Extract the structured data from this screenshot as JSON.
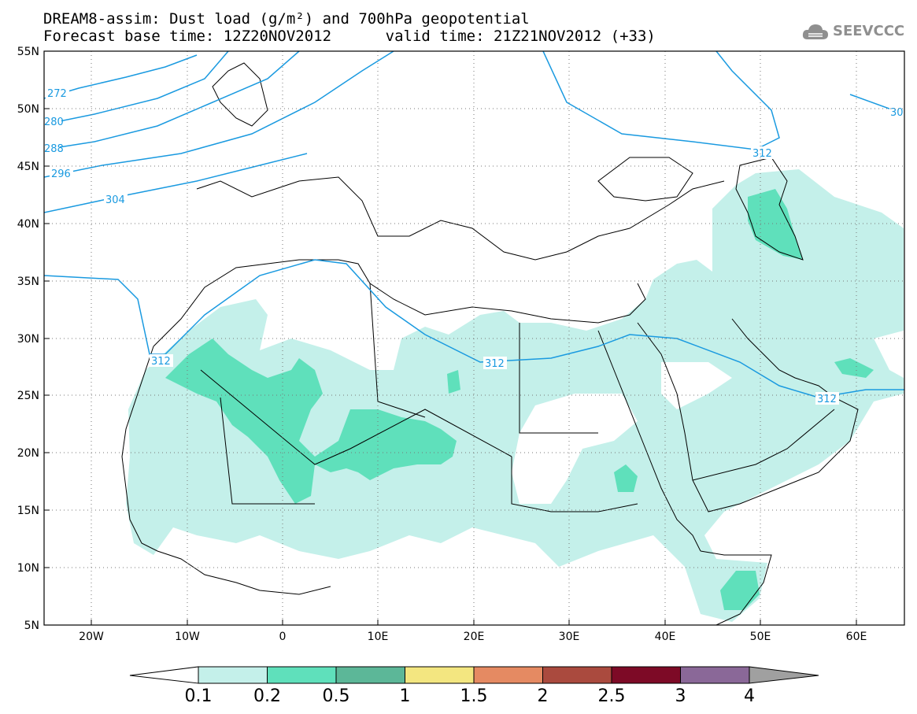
{
  "title": {
    "line1": "DREAM8-assim: Dust load (g/m²) and 700hPa geopotential",
    "line2": "Forecast base time: 12Z20NOV2012      valid time: 21Z21NOV2012 (+33)"
  },
  "logo": {
    "text": "SEEVCCC",
    "icon": "cloud-icon"
  },
  "map": {
    "lon_range": [
      -25,
      65
    ],
    "lat_range": [
      5,
      55
    ],
    "x_ticks": [
      "20W",
      "10W",
      "0",
      "10E",
      "20E",
      "30E",
      "40E",
      "50E",
      "60E"
    ],
    "y_ticks": [
      "55N",
      "50N",
      "45N",
      "40N",
      "35N",
      "30N",
      "25N",
      "20N",
      "15N",
      "10N",
      "5N"
    ],
    "gridlines": "dotted",
    "background": "#ffffff",
    "coastline_color": "#000000"
  },
  "contours": {
    "color": "#1a9ae0",
    "labels": [
      "272",
      "280",
      "288",
      "296",
      "304",
      "312",
      "312",
      "312",
      "30"
    ]
  },
  "colorbar": {
    "labels": [
      "0.1",
      "0.2",
      "0.5",
      "1",
      "1.5",
      "2",
      "2.5",
      "3",
      "4"
    ],
    "colors": [
      "#c4f0ea",
      "#5fe0bb",
      "#5cb798",
      "#f3e680",
      "#e58a62",
      "#aa4a3e",
      "#7d0a26",
      "#8a6898"
    ]
  }
}
